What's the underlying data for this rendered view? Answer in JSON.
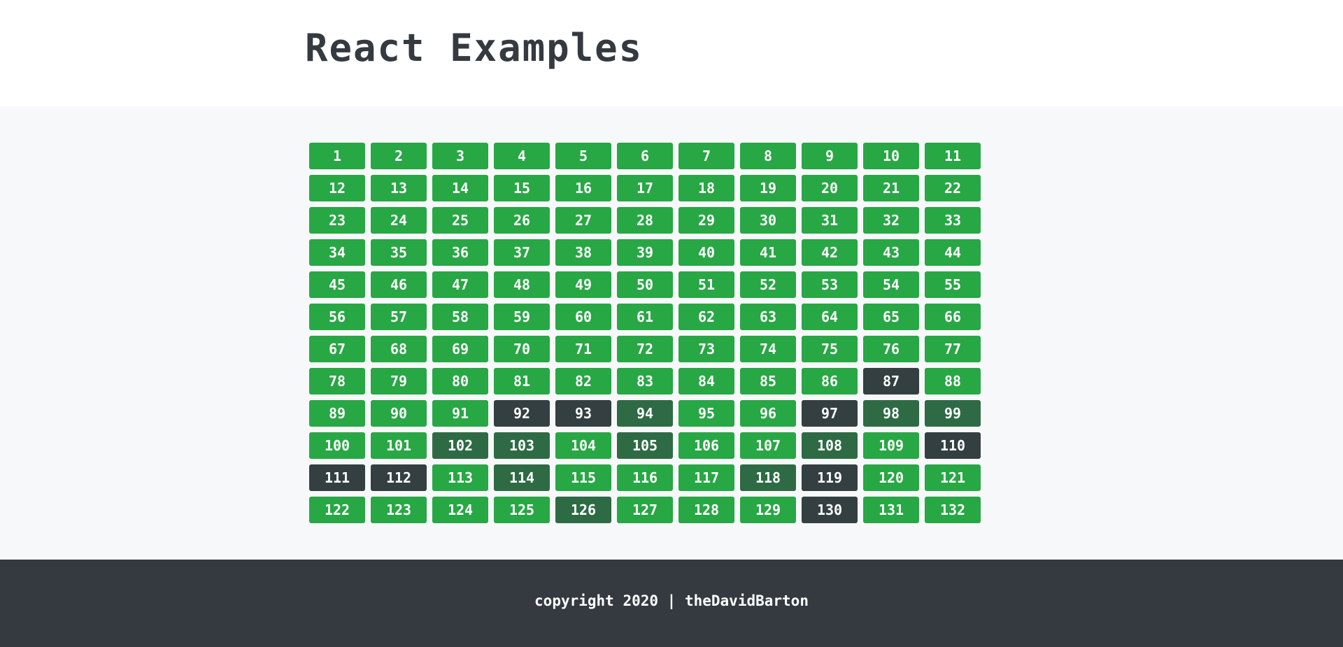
{
  "header": {
    "title": "React Examples"
  },
  "colors": {
    "default": "#28a745",
    "medium": "#2e6b45",
    "dark": "#343f42"
  },
  "grid": {
    "columns": 11,
    "cells": [
      {
        "label": "1",
        "state": 0
      },
      {
        "label": "2",
        "state": 0
      },
      {
        "label": "3",
        "state": 0
      },
      {
        "label": "4",
        "state": 0
      },
      {
        "label": "5",
        "state": 0
      },
      {
        "label": "6",
        "state": 0
      },
      {
        "label": "7",
        "state": 0
      },
      {
        "label": "8",
        "state": 0
      },
      {
        "label": "9",
        "state": 0
      },
      {
        "label": "10",
        "state": 0
      },
      {
        "label": "11",
        "state": 0
      },
      {
        "label": "12",
        "state": 0
      },
      {
        "label": "13",
        "state": 0
      },
      {
        "label": "14",
        "state": 0
      },
      {
        "label": "15",
        "state": 0
      },
      {
        "label": "16",
        "state": 0
      },
      {
        "label": "17",
        "state": 0
      },
      {
        "label": "18",
        "state": 0
      },
      {
        "label": "19",
        "state": 0
      },
      {
        "label": "20",
        "state": 0
      },
      {
        "label": "21",
        "state": 0
      },
      {
        "label": "22",
        "state": 0
      },
      {
        "label": "23",
        "state": 0
      },
      {
        "label": "24",
        "state": 0
      },
      {
        "label": "25",
        "state": 0
      },
      {
        "label": "26",
        "state": 0
      },
      {
        "label": "27",
        "state": 0
      },
      {
        "label": "28",
        "state": 0
      },
      {
        "label": "29",
        "state": 0
      },
      {
        "label": "30",
        "state": 0
      },
      {
        "label": "31",
        "state": 0
      },
      {
        "label": "32",
        "state": 0
      },
      {
        "label": "33",
        "state": 0
      },
      {
        "label": "34",
        "state": 0
      },
      {
        "label": "35",
        "state": 0
      },
      {
        "label": "36",
        "state": 0
      },
      {
        "label": "37",
        "state": 0
      },
      {
        "label": "38",
        "state": 0
      },
      {
        "label": "39",
        "state": 0
      },
      {
        "label": "40",
        "state": 0
      },
      {
        "label": "41",
        "state": 0
      },
      {
        "label": "42",
        "state": 0
      },
      {
        "label": "43",
        "state": 0
      },
      {
        "label": "44",
        "state": 0
      },
      {
        "label": "45",
        "state": 0
      },
      {
        "label": "46",
        "state": 0
      },
      {
        "label": "47",
        "state": 0
      },
      {
        "label": "48",
        "state": 0
      },
      {
        "label": "49",
        "state": 0
      },
      {
        "label": "50",
        "state": 0
      },
      {
        "label": "51",
        "state": 0
      },
      {
        "label": "52",
        "state": 0
      },
      {
        "label": "53",
        "state": 0
      },
      {
        "label": "54",
        "state": 0
      },
      {
        "label": "55",
        "state": 0
      },
      {
        "label": "56",
        "state": 0
      },
      {
        "label": "57",
        "state": 0
      },
      {
        "label": "58",
        "state": 0
      },
      {
        "label": "59",
        "state": 0
      },
      {
        "label": "60",
        "state": 0
      },
      {
        "label": "61",
        "state": 0
      },
      {
        "label": "62",
        "state": 0
      },
      {
        "label": "63",
        "state": 0
      },
      {
        "label": "64",
        "state": 0
      },
      {
        "label": "65",
        "state": 0
      },
      {
        "label": "66",
        "state": 0
      },
      {
        "label": "67",
        "state": 0
      },
      {
        "label": "68",
        "state": 0
      },
      {
        "label": "69",
        "state": 0
      },
      {
        "label": "70",
        "state": 0
      },
      {
        "label": "71",
        "state": 0
      },
      {
        "label": "72",
        "state": 0
      },
      {
        "label": "73",
        "state": 0
      },
      {
        "label": "74",
        "state": 0
      },
      {
        "label": "75",
        "state": 0
      },
      {
        "label": "76",
        "state": 0
      },
      {
        "label": "77",
        "state": 0
      },
      {
        "label": "78",
        "state": 0
      },
      {
        "label": "79",
        "state": 0
      },
      {
        "label": "80",
        "state": 0
      },
      {
        "label": "81",
        "state": 0
      },
      {
        "label": "82",
        "state": 0
      },
      {
        "label": "83",
        "state": 0
      },
      {
        "label": "84",
        "state": 0
      },
      {
        "label": "85",
        "state": 0
      },
      {
        "label": "86",
        "state": 0
      },
      {
        "label": "87",
        "state": 2
      },
      {
        "label": "88",
        "state": 0
      },
      {
        "label": "89",
        "state": 0
      },
      {
        "label": "90",
        "state": 0
      },
      {
        "label": "91",
        "state": 0
      },
      {
        "label": "92",
        "state": 2
      },
      {
        "label": "93",
        "state": 2
      },
      {
        "label": "94",
        "state": 1
      },
      {
        "label": "95",
        "state": 0
      },
      {
        "label": "96",
        "state": 0
      },
      {
        "label": "97",
        "state": 2
      },
      {
        "label": "98",
        "state": 1
      },
      {
        "label": "99",
        "state": 1
      },
      {
        "label": "100",
        "state": 0
      },
      {
        "label": "101",
        "state": 0
      },
      {
        "label": "102",
        "state": 1
      },
      {
        "label": "103",
        "state": 1
      },
      {
        "label": "104",
        "state": 0
      },
      {
        "label": "105",
        "state": 1
      },
      {
        "label": "106",
        "state": 0
      },
      {
        "label": "107",
        "state": 0
      },
      {
        "label": "108",
        "state": 1
      },
      {
        "label": "109",
        "state": 0
      },
      {
        "label": "110",
        "state": 2
      },
      {
        "label": "111",
        "state": 2
      },
      {
        "label": "112",
        "state": 2
      },
      {
        "label": "113",
        "state": 0
      },
      {
        "label": "114",
        "state": 1
      },
      {
        "label": "115",
        "state": 0
      },
      {
        "label": "116",
        "state": 0
      },
      {
        "label": "117",
        "state": 0
      },
      {
        "label": "118",
        "state": 1
      },
      {
        "label": "119",
        "state": 2
      },
      {
        "label": "120",
        "state": 0
      },
      {
        "label": "121",
        "state": 0
      },
      {
        "label": "122",
        "state": 0
      },
      {
        "label": "123",
        "state": 0
      },
      {
        "label": "124",
        "state": 0
      },
      {
        "label": "125",
        "state": 0
      },
      {
        "label": "126",
        "state": 1
      },
      {
        "label": "127",
        "state": 0
      },
      {
        "label": "128",
        "state": 0
      },
      {
        "label": "129",
        "state": 0
      },
      {
        "label": "130",
        "state": 2
      },
      {
        "label": "131",
        "state": 0
      },
      {
        "label": "132",
        "state": 0
      }
    ]
  },
  "footer": {
    "text": "copyright 2020 | theDavidBarton"
  }
}
